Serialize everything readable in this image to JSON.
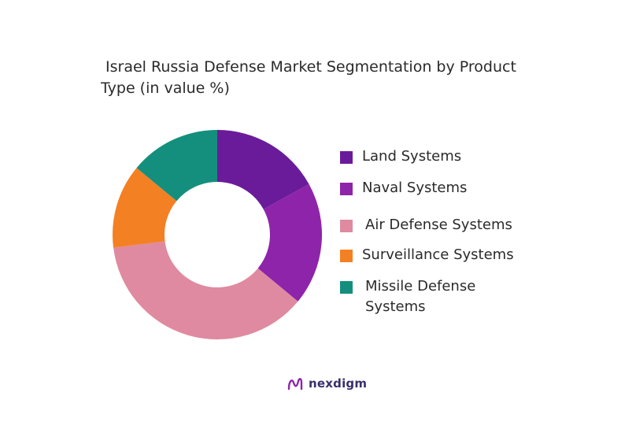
{
  "chart_data": {
    "type": "pie",
    "variant": "donut",
    "title_line1": "Israel Russia Defense Market Segmentation by Product",
    "title_line2": "Type (in value %)",
    "categories": [
      "Land Systems",
      "Naval Systems",
      "Air Defense Systems",
      "Surveillance Systems",
      "Missile Defense Systems"
    ],
    "values": [
      17,
      19,
      37,
      13,
      14
    ],
    "colors": [
      "#6a1b9a",
      "#8e24aa",
      "#df8aa0",
      "#f48024",
      "#148f7d"
    ],
    "legend_position": "right",
    "legend_labels": [
      "Land Systems",
      "Naval Systems",
      "Air Defense Systems",
      "Surveillance Systems",
      "Missile Defense Systems"
    ]
  },
  "brand": {
    "name": "nexdigm"
  }
}
